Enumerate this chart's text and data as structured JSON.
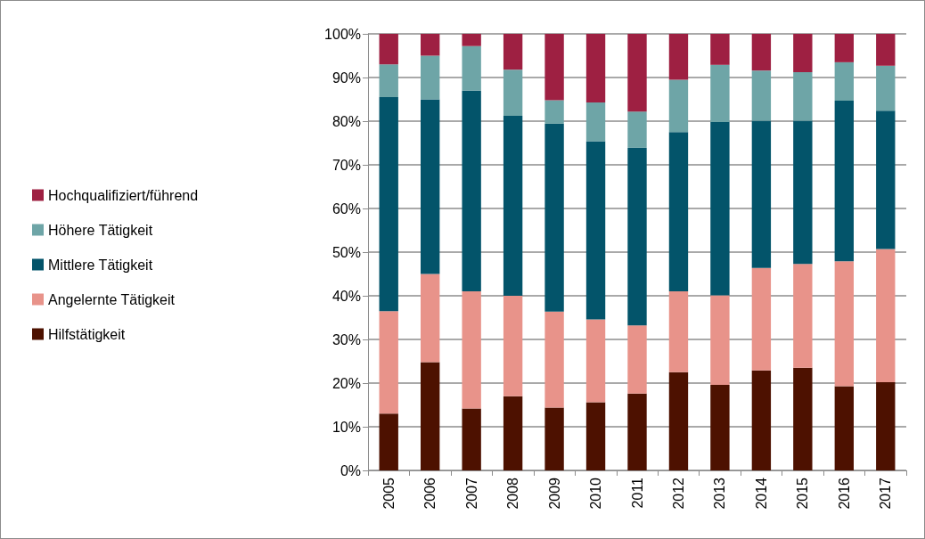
{
  "chart_data": {
    "type": "bar",
    "stacked": true,
    "categories": [
      "2005",
      "2006",
      "2007",
      "2008",
      "2009",
      "2010",
      "2011",
      "2012",
      "2013",
      "2014",
      "2015",
      "2016",
      "2017"
    ],
    "series": [
      {
        "name": "Hilfstätigkeit",
        "color": "#4d1100",
        "values": [
          13,
          24.8,
          14.2,
          17,
          14.4,
          15.6,
          17.6,
          22.5,
          19.6,
          22.9,
          23.5,
          19.3,
          20.2
        ]
      },
      {
        "name": "Angelernte Tätigkeit",
        "color": "#e8938a",
        "values": [
          23.5,
          20.2,
          26.8,
          23,
          22,
          19,
          15.6,
          18.5,
          20.5,
          23.5,
          23.8,
          28.6,
          30.5
        ]
      },
      {
        "name": "Mittlere Tätigkeit",
        "color": "#03546a",
        "values": [
          49,
          40,
          46,
          41.2,
          43,
          40.8,
          40.7,
          36.5,
          39.7,
          33.7,
          32.8,
          36.8,
          31.7
        ]
      },
      {
        "name": "Höhere Tätigkeit",
        "color": "#6ea5a7",
        "values": [
          7.5,
          10,
          10.2,
          10.6,
          5.4,
          8.9,
          8.3,
          12,
          13.1,
          11.5,
          11.1,
          8.8,
          10.3
        ]
      },
      {
        "name": "Hochqualifiziert/führend",
        "color": "#9e2042",
        "values": [
          7,
          5,
          2.8,
          8.2,
          15.2,
          15.7,
          17.8,
          10.5,
          7.1,
          8.4,
          8.8,
          6.5,
          7.3
        ]
      }
    ],
    "ylim": [
      0,
      100
    ],
    "yticks": [
      {
        "value": 0,
        "label": "0%"
      },
      {
        "value": 10,
        "label": "10%"
      },
      {
        "value": 20,
        "label": "20%"
      },
      {
        "value": 30,
        "label": "30%"
      },
      {
        "value": 40,
        "label": "40%"
      },
      {
        "value": 50,
        "label": "50%"
      },
      {
        "value": 60,
        "label": "60%"
      },
      {
        "value": 70,
        "label": "70%"
      },
      {
        "value": 80,
        "label": "80%"
      },
      {
        "value": 90,
        "label": "90%"
      },
      {
        "value": 100,
        "label": "100%"
      }
    ],
    "grid": "y",
    "legend": "left"
  }
}
